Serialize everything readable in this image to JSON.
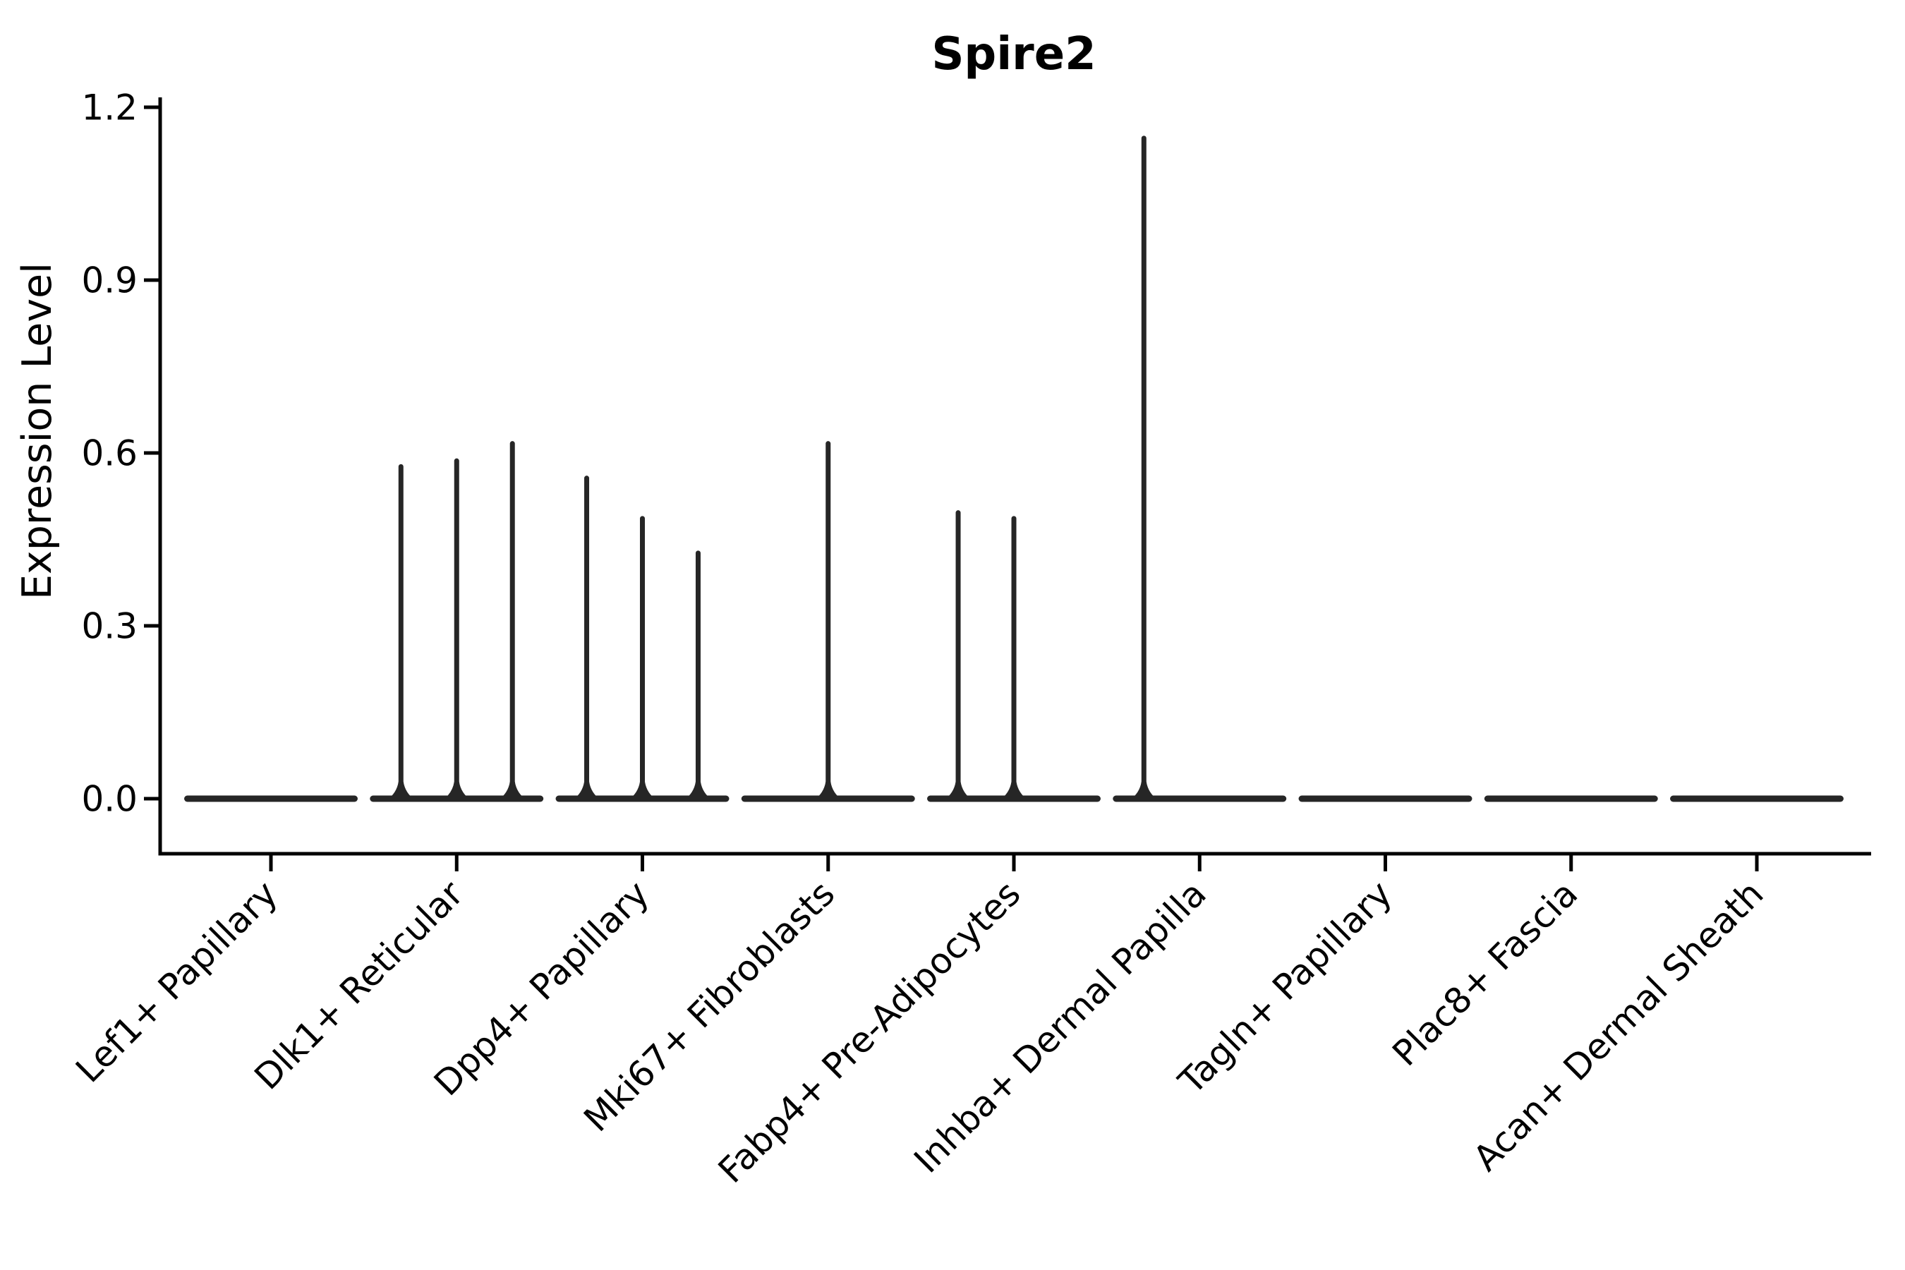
{
  "chart_data": {
    "type": "violin",
    "title": "Spire2",
    "xlabel": "",
    "ylabel": "Expression Level",
    "ylim": [
      0.0,
      1.2
    ],
    "yticks": [
      0.0,
      0.3,
      0.6,
      0.9,
      1.2
    ],
    "ytick_labels": [
      "0.0",
      "0.3",
      "0.6",
      "0.9",
      "1.2"
    ],
    "grid": false,
    "legend": "none",
    "categories": [
      "Lef1+ Papillary",
      "Dlk1+ Reticular",
      "Dpp4+ Papillary",
      "Mki67+ Fibroblasts",
      "Fabp4+ Pre-Adipocytes",
      "Inhba+ Dermal Papilla",
      "Tagln+ Papillary",
      "Plac8+ Fascia",
      "Acan+ Dermal Sheath"
    ],
    "violins": [
      {
        "category": "Lef1+ Papillary",
        "baseline_value": 0.0,
        "spikes": []
      },
      {
        "category": "Dlk1+ Reticular",
        "baseline_value": 0.0,
        "spikes": [
          {
            "pos": -0.3,
            "value": 0.58
          },
          {
            "pos": 0.0,
            "value": 0.59
          },
          {
            "pos": 0.3,
            "value": 0.62
          }
        ]
      },
      {
        "category": "Dpp4+ Papillary",
        "baseline_value": 0.0,
        "spikes": [
          {
            "pos": -0.3,
            "value": 0.56
          },
          {
            "pos": 0.0,
            "value": 0.49
          },
          {
            "pos": 0.3,
            "value": 0.43
          }
        ]
      },
      {
        "category": "Mki67+ Fibroblasts",
        "baseline_value": 0.0,
        "spikes": [
          {
            "pos": 0.0,
            "value": 0.62
          }
        ]
      },
      {
        "category": "Fabp4+ Pre-Adipocytes",
        "baseline_value": 0.0,
        "spikes": [
          {
            "pos": -0.3,
            "value": 0.5
          },
          {
            "pos": 0.0,
            "value": 0.49
          }
        ]
      },
      {
        "category": "Inhba+ Dermal Papilla",
        "baseline_value": 0.0,
        "spikes": [
          {
            "pos": -0.3,
            "value": 1.15
          }
        ]
      },
      {
        "category": "Tagln+ Papillary",
        "baseline_value": 0.0,
        "spikes": []
      },
      {
        "category": "Plac8+ Fascia",
        "baseline_value": 0.0,
        "spikes": []
      },
      {
        "category": "Acan+ Dermal Sheath",
        "baseline_value": 0.0,
        "spikes": []
      }
    ],
    "violin_halfwidth_fraction": 0.45,
    "colors": {
      "violin": "#262626",
      "axis": "#000000",
      "text": "#000000",
      "background": "#ffffff"
    }
  }
}
